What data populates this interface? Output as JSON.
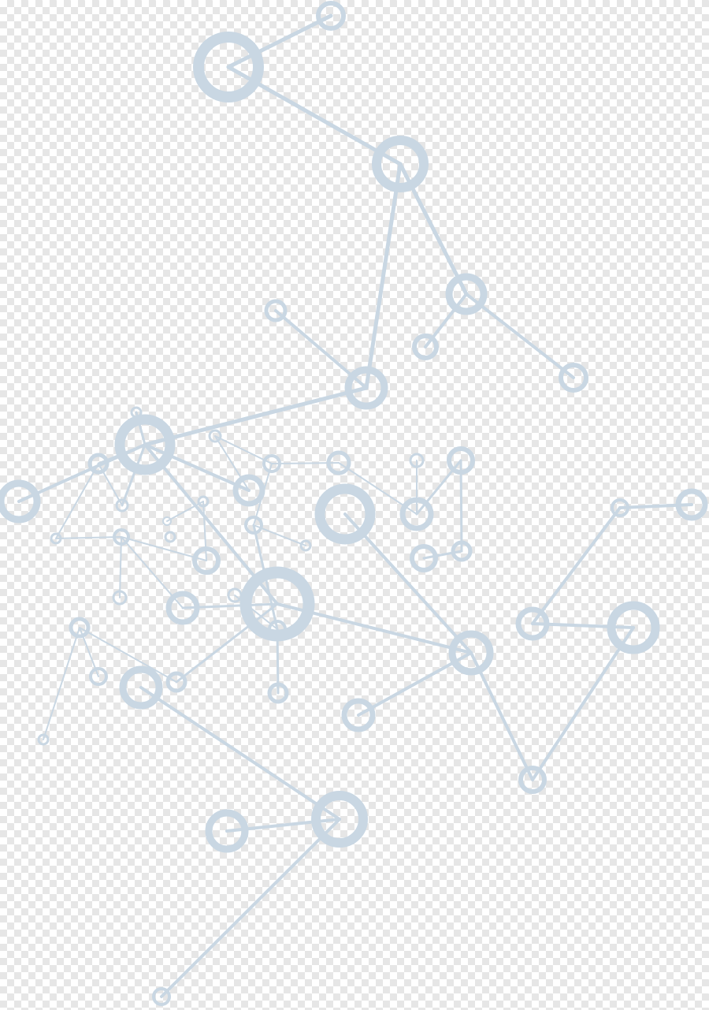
{
  "colors": {
    "background": "#ffffff",
    "checker": "#e6e6e6",
    "node_stroke": "#c9d7e3",
    "edge_stroke": "#c9d7e3"
  },
  "graphic": {
    "kind": "molecular-network-illustration"
  }
}
